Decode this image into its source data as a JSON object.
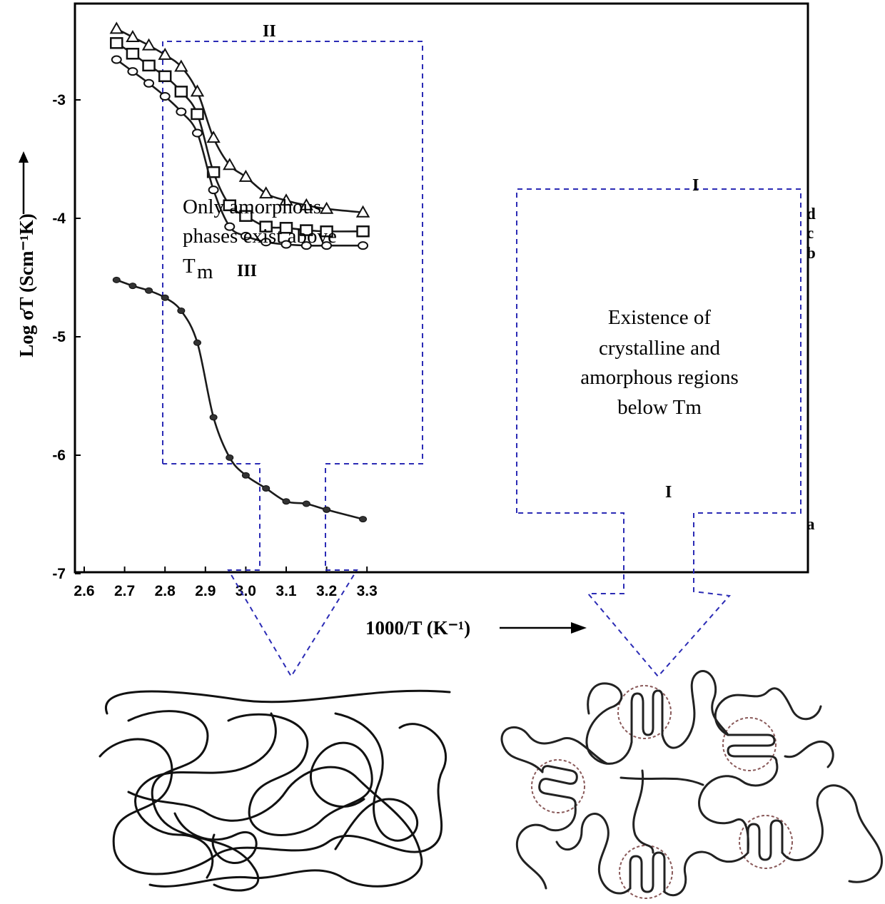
{
  "chart_data": {
    "type": "line",
    "xlabel": "1000/T (K⁻¹)",
    "ylabel": "Log σT (Scm⁻¹K)",
    "xlim": [
      2.6,
      3.35
    ],
    "ylim": [
      -7,
      -2.2
    ],
    "x_ticks": [
      "2.6",
      "2.7",
      "2.8",
      "2.9",
      "3.0",
      "3.1",
      "3.2",
      "3.3"
    ],
    "y_ticks": [
      "-3",
      "-4",
      "-5",
      "-6",
      "-7"
    ],
    "grid": false,
    "series": [
      {
        "name": "d",
        "marker": "triangle",
        "x": [
          2.68,
          2.72,
          2.76,
          2.8,
          2.84,
          2.88,
          2.92,
          2.96,
          3.0,
          3.05,
          3.1,
          3.15,
          3.2,
          3.29
        ],
        "y": [
          -2.4,
          -2.47,
          -2.54,
          -2.62,
          -2.72,
          -2.93,
          -3.32,
          -3.55,
          -3.65,
          -3.79,
          -3.85,
          -3.89,
          -3.92,
          -3.95
        ]
      },
      {
        "name": "c",
        "marker": "square",
        "x": [
          2.68,
          2.72,
          2.76,
          2.8,
          2.84,
          2.88,
          2.92,
          2.96,
          3.0,
          3.05,
          3.1,
          3.15,
          3.2,
          3.29
        ],
        "y": [
          -2.52,
          -2.61,
          -2.71,
          -2.8,
          -2.93,
          -3.12,
          -3.61,
          -3.89,
          -3.98,
          -4.07,
          -4.08,
          -4.1,
          -4.11,
          -4.11
        ]
      },
      {
        "name": "b",
        "marker": "circle",
        "x": [
          2.68,
          2.72,
          2.76,
          2.8,
          2.84,
          2.88,
          2.92,
          2.96,
          3.0,
          3.05,
          3.1,
          3.15,
          3.2,
          3.29
        ],
        "y": [
          -2.66,
          -2.76,
          -2.86,
          -2.97,
          -3.1,
          -3.28,
          -3.76,
          -4.07,
          -4.15,
          -4.2,
          -4.22,
          -4.23,
          -4.23,
          -4.23
        ]
      },
      {
        "name": "a",
        "marker": "dot",
        "x": [
          2.68,
          2.72,
          2.76,
          2.8,
          2.84,
          2.88,
          2.92,
          2.96,
          3.0,
          3.05,
          3.1,
          3.15,
          3.2,
          3.29
        ],
        "y": [
          -4.52,
          -4.57,
          -4.61,
          -4.67,
          -4.78,
          -5.05,
          -5.68,
          -6.02,
          -6.17,
          -6.28,
          -6.39,
          -6.41,
          -6.46,
          -6.54
        ]
      }
    ],
    "annotations": {
      "region_II": "II",
      "region_III": "III",
      "region_I_top": "I",
      "region_I_bottom": "I",
      "above_tm_lines": [
        "Only amorphous",
        "phases exist above",
        "T"
      ],
      "above_tm_subscript": "m",
      "below_tm_lines": [
        "Existence of",
        "crystalline and",
        "amorphous regions",
        "below Tm"
      ]
    },
    "colors": {
      "axis": "#000000",
      "curve": "#1a1a1a",
      "dashed_box": "#2b2bb5",
      "crystal_circle": "#8a5a5a"
    }
  }
}
